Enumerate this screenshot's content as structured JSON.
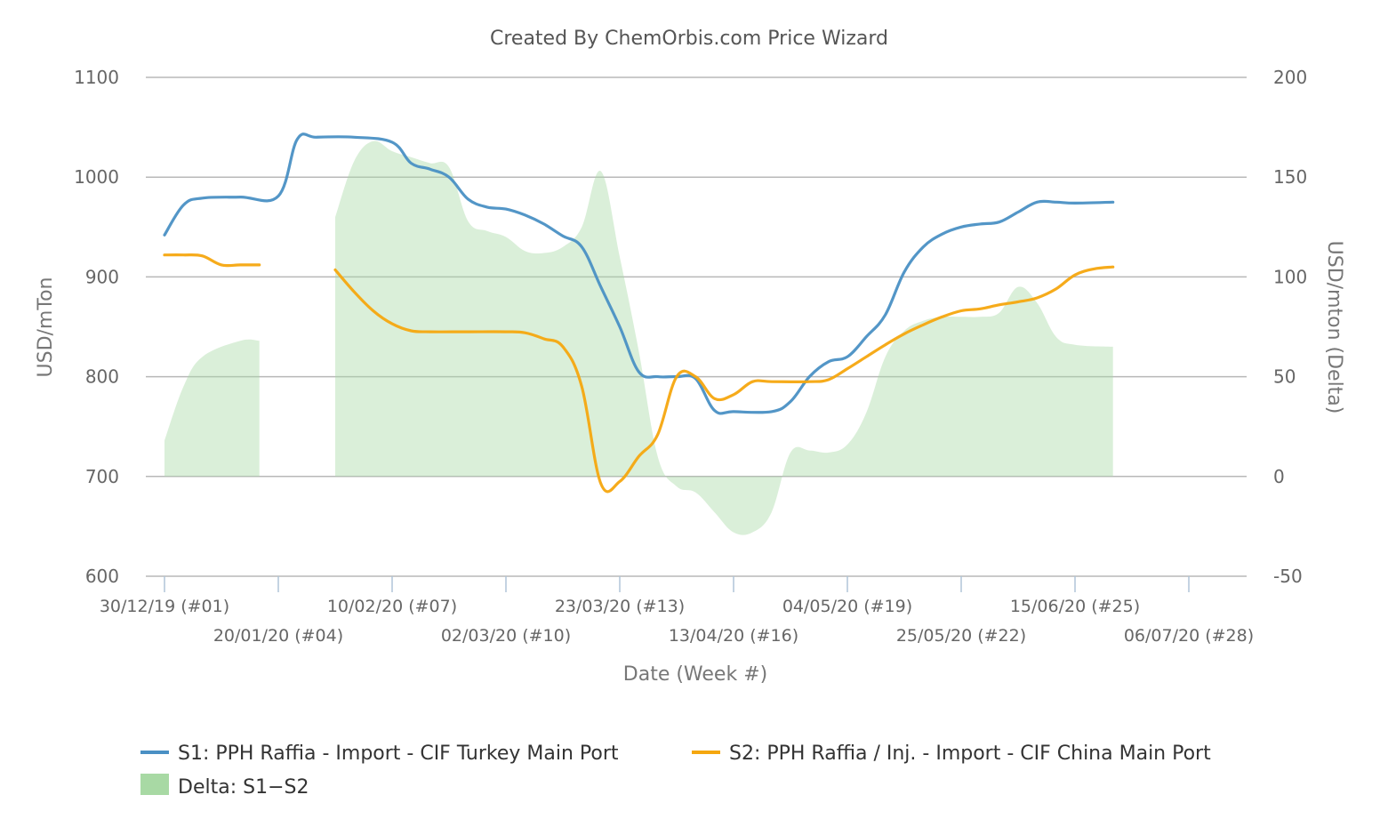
{
  "chart_data": {
    "type": "line",
    "title": "Created By ChemOrbis.com Price Wizard",
    "xlabel": "Date (Week #)",
    "ylabel_left": "USD/mTon",
    "ylabel_right": "USD/mton (Delta)",
    "ylim_left": [
      600,
      1100
    ],
    "ylim_right": [
      -50,
      200
    ],
    "y_ticks_left": [
      "600",
      "700",
      "800",
      "900",
      "1000",
      "1100"
    ],
    "y_ticks_right": [
      "-50",
      "0",
      "50",
      "100",
      "150",
      "200"
    ],
    "x_ticks": [
      {
        "week": 1,
        "label": "30/12/19 (#01)"
      },
      {
        "week": 4,
        "label": "20/01/20 (#04)"
      },
      {
        "week": 7,
        "label": "10/02/20 (#07)"
      },
      {
        "week": 10,
        "label": "02/03/20 (#10)"
      },
      {
        "week": 13,
        "label": "23/03/20 (#13)"
      },
      {
        "week": 16,
        "label": "13/04/20 (#16)"
      },
      {
        "week": 19,
        "label": "04/05/20 (#19)"
      },
      {
        "week": 22,
        "label": "25/05/20 (#22)"
      },
      {
        "week": 25,
        "label": "15/06/20 (#25)"
      },
      {
        "week": 28,
        "label": "06/07/20 (#28)"
      }
    ],
    "grid": true,
    "legend_position": "bottom",
    "series": [
      {
        "name": "S1: PPH Raffia - Import - CIF Turkey Main Port",
        "axis": "left",
        "color": "#4a90c4",
        "points": [
          [
            1,
            942
          ],
          [
            1.5,
            972
          ],
          [
            2,
            979
          ],
          [
            3,
            980
          ],
          [
            4,
            981
          ],
          [
            4.5,
            1038
          ],
          [
            5,
            1040
          ],
          [
            6,
            1040
          ],
          [
            7,
            1035
          ],
          [
            7.5,
            1014
          ],
          [
            8,
            1008
          ],
          [
            8.5,
            1000
          ],
          [
            9,
            978
          ],
          [
            9.5,
            970
          ],
          [
            10,
            968
          ],
          [
            10.5,
            962
          ],
          [
            11,
            953
          ],
          [
            11.5,
            941
          ],
          [
            12,
            930
          ],
          [
            12.5,
            890
          ],
          [
            13,
            850
          ],
          [
            13.5,
            805
          ],
          [
            14,
            800
          ],
          [
            14.5,
            800
          ],
          [
            15,
            798
          ],
          [
            15.5,
            766
          ],
          [
            16,
            765
          ],
          [
            17,
            765
          ],
          [
            17.5,
            775
          ],
          [
            18,
            800
          ],
          [
            18.5,
            815
          ],
          [
            19,
            820
          ],
          [
            19.5,
            840
          ],
          [
            20,
            862
          ],
          [
            20.5,
            905
          ],
          [
            21,
            930
          ],
          [
            21.5,
            943
          ],
          [
            22,
            950
          ],
          [
            22.5,
            953
          ],
          [
            23,
            955
          ],
          [
            23.5,
            965
          ],
          [
            24,
            975
          ],
          [
            24.5,
            975
          ],
          [
            25,
            974
          ],
          [
            26,
            975
          ]
        ]
      },
      {
        "name": "S2: PPH Raffia / Inj. - Import - CIF China Main Port",
        "axis": "left",
        "color": "#f5a70f",
        "points": [
          [
            1,
            922
          ],
          [
            1.5,
            922
          ],
          [
            2,
            921
          ],
          [
            2.5,
            912
          ],
          [
            3,
            912
          ],
          [
            3.5,
            912
          ],
          [
            null,
            null
          ],
          [
            5.5,
            907
          ],
          [
            6,
            885
          ],
          [
            6.5,
            866
          ],
          [
            7,
            853
          ],
          [
            7.5,
            846
          ],
          [
            8,
            845
          ],
          [
            9,
            845
          ],
          [
            10,
            845
          ],
          [
            10.5,
            844
          ],
          [
            11,
            838
          ],
          [
            11.5,
            830
          ],
          [
            12,
            790
          ],
          [
            12.5,
            693
          ],
          [
            13,
            695
          ],
          [
            13.5,
            720
          ],
          [
            14,
            742
          ],
          [
            14.5,
            800
          ],
          [
            15,
            800
          ],
          [
            15.5,
            778
          ],
          [
            16,
            782
          ],
          [
            16.5,
            795
          ],
          [
            17,
            795
          ],
          [
            18,
            795
          ],
          [
            18.5,
            797
          ],
          [
            19,
            808
          ],
          [
            19.5,
            820
          ],
          [
            20,
            832
          ],
          [
            20.5,
            843
          ],
          [
            21,
            852
          ],
          [
            21.5,
            860
          ],
          [
            22,
            866
          ],
          [
            22.5,
            868
          ],
          [
            23,
            872
          ],
          [
            23.5,
            875
          ],
          [
            24,
            879
          ],
          [
            24.5,
            888
          ],
          [
            25,
            902
          ],
          [
            25.5,
            908
          ],
          [
            26,
            910
          ]
        ]
      },
      {
        "name": "Delta: S1−S2",
        "axis": "right",
        "type": "area",
        "color": "#a8d9a4",
        "points": [
          [
            1,
            18
          ],
          [
            1.5,
            45
          ],
          [
            2,
            60
          ],
          [
            3,
            68
          ],
          [
            3.5,
            68
          ],
          [
            null,
            null
          ],
          [
            5.5,
            130
          ],
          [
            6,
            158
          ],
          [
            6.5,
            168
          ],
          [
            7,
            163
          ],
          [
            7.5,
            160
          ],
          [
            8,
            157
          ],
          [
            8.5,
            155
          ],
          [
            9,
            128
          ],
          [
            9.5,
            123
          ],
          [
            10,
            120
          ],
          [
            10.5,
            113
          ],
          [
            11,
            112
          ],
          [
            11.5,
            115
          ],
          [
            12,
            125
          ],
          [
            12.5,
            153
          ],
          [
            13,
            110
          ],
          [
            13.5,
            63
          ],
          [
            14,
            10
          ],
          [
            14.5,
            -5
          ],
          [
            15,
            -8
          ],
          [
            15.5,
            -18
          ],
          [
            16,
            -28
          ],
          [
            16.5,
            -28
          ],
          [
            17,
            -18
          ],
          [
            17.5,
            12
          ],
          [
            18,
            13
          ],
          [
            18.5,
            12
          ],
          [
            19,
            16
          ],
          [
            19.5,
            32
          ],
          [
            20,
            60
          ],
          [
            20.5,
            73
          ],
          [
            21,
            78
          ],
          [
            21.5,
            80
          ],
          [
            22,
            80
          ],
          [
            22.5,
            80
          ],
          [
            23,
            82
          ],
          [
            23.5,
            95
          ],
          [
            24,
            87
          ],
          [
            24.5,
            70
          ],
          [
            25,
            66
          ],
          [
            26,
            65
          ]
        ]
      }
    ]
  }
}
